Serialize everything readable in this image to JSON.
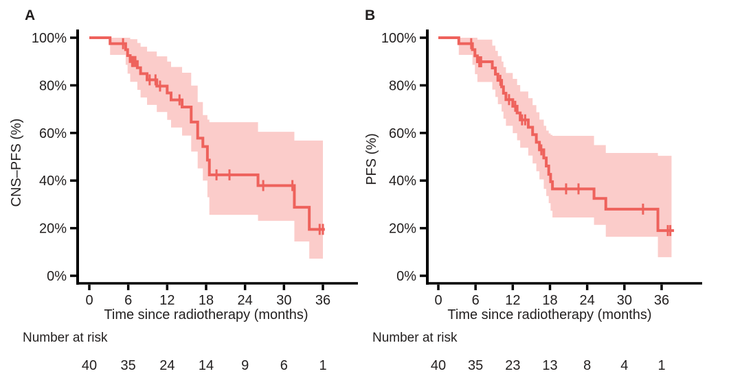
{
  "colors": {
    "curve_line": "#ee625c",
    "confidence_band": "#fbccca",
    "axis": "#000000",
    "text": "#221f1f",
    "background": "#ffffff"
  },
  "figure": {
    "panels": [
      {
        "label": "A",
        "ylabel": "CNS–PFS (%)",
        "xlabel": "Time since radiotherapy (months)",
        "risk_label": "Number at risk"
      },
      {
        "label": "B",
        "ylabel": "PFS (%)",
        "xlabel": "Time since radiotherapy (months)",
        "risk_label": "Number at risk"
      }
    ]
  },
  "chart_data": [
    {
      "type": "line",
      "variant": "kaplan-meier-step",
      "panel": "A",
      "ylabel": "CNS–PFS (%)",
      "xlabel": "Time since radiotherapy (months)",
      "xlim": [
        0,
        41
      ],
      "ylim": [
        0,
        100
      ],
      "x_ticks": [
        0,
        6,
        12,
        18,
        24,
        30,
        36
      ],
      "y_ticks": [
        0,
        20,
        40,
        60,
        80,
        100
      ],
      "y_tick_labels": [
        "0%",
        "20%",
        "40%",
        "60%",
        "80%",
        "100%"
      ],
      "legend": "none",
      "grid": false,
      "steps_format": [
        "time_months",
        "survival_pct",
        "ci_lower_pct",
        "ci_upper_pct"
      ],
      "steps": [
        [
          0,
          100,
          100,
          100
        ],
        [
          3.2,
          97.5,
          92.8,
          100
        ],
        [
          5.6,
          95.0,
          88.6,
          100
        ],
        [
          5.9,
          92.5,
          84.9,
          100
        ],
        [
          6.3,
          90.0,
          81.5,
          99.4
        ],
        [
          7.4,
          87.4,
          78.1,
          97.8
        ],
        [
          7.9,
          84.9,
          74.9,
          96.2
        ],
        [
          8.9,
          82.3,
          71.8,
          94.2
        ],
        [
          10.4,
          79.7,
          68.8,
          92.2
        ],
        [
          12.0,
          76.8,
          65.5,
          90.0
        ],
        [
          12.6,
          73.9,
          62.3,
          87.7
        ],
        [
          14.3,
          70.9,
          58.9,
          85.3
        ],
        [
          15.7,
          64.6,
          52.2,
          79.9
        ],
        [
          16.7,
          57.8,
          45.1,
          73.0
        ],
        [
          17.5,
          54.3,
          40.0,
          67.5
        ],
        [
          18.2,
          48.6,
          33.0,
          65.6
        ],
        [
          18.5,
          42.4,
          25.6,
          64.5
        ],
        [
          26.0,
          37.9,
          23.1,
          60.5
        ],
        [
          31.6,
          28.8,
          14.4,
          56.8
        ],
        [
          33.9,
          19.5,
          7.2,
          56.8
        ]
      ],
      "end_time": 36.3,
      "band_end_time": 36.0,
      "censor_marks": [
        [
          5.2,
          97.5
        ],
        [
          6.6,
          90.0
        ],
        [
          6.8,
          90.0
        ],
        [
          7.1,
          90.0
        ],
        [
          9.3,
          82.3
        ],
        [
          10.2,
          82.3
        ],
        [
          10.9,
          79.7
        ],
        [
          13.9,
          73.9
        ],
        [
          19.6,
          42.4
        ],
        [
          21.6,
          42.4
        ],
        [
          26.8,
          37.9
        ],
        [
          31.3,
          37.9
        ],
        [
          35.5,
          19.5
        ],
        [
          36.0,
          19.5
        ]
      ],
      "number_at_risk": {
        "times": [
          0,
          6,
          12,
          18,
          24,
          30,
          36
        ],
        "counts": [
          40,
          35,
          24,
          14,
          9,
          6,
          1
        ]
      }
    },
    {
      "type": "line",
      "variant": "kaplan-meier-step",
      "panel": "B",
      "ylabel": "PFS (%)",
      "xlabel": "Time since radiotherapy (months)",
      "xlim": [
        0,
        41
      ],
      "ylim": [
        0,
        100
      ],
      "x_ticks": [
        0,
        6,
        12,
        18,
        24,
        30,
        36
      ],
      "y_ticks": [
        0,
        20,
        40,
        60,
        80,
        100
      ],
      "y_tick_labels": [
        "0%",
        "20%",
        "40%",
        "60%",
        "80%",
        "100%"
      ],
      "legend": "none",
      "grid": false,
      "steps_format": [
        "time_months",
        "survival_pct",
        "ci_lower_pct",
        "ci_upper_pct"
      ],
      "steps": [
        [
          0,
          100,
          100,
          100
        ],
        [
          3.3,
          97.5,
          92.8,
          100
        ],
        [
          5.5,
          95.0,
          88.6,
          100
        ],
        [
          5.9,
          92.4,
          84.7,
          100
        ],
        [
          6.3,
          89.9,
          81.4,
          99.2
        ],
        [
          8.7,
          87.3,
          78.2,
          96.7
        ],
        [
          9.2,
          84.7,
          75.1,
          94.5
        ],
        [
          9.6,
          82.1,
          72.1,
          92.3
        ],
        [
          10.2,
          79.4,
          69.0,
          90.0
        ],
        [
          10.5,
          76.7,
          66.0,
          87.6
        ],
        [
          10.9,
          74.0,
          63.0,
          85.2
        ],
        [
          12.0,
          71.2,
          59.9,
          82.7
        ],
        [
          12.7,
          68.4,
          56.9,
          80.1
        ],
        [
          13.2,
          65.5,
          53.8,
          77.4
        ],
        [
          14.5,
          62.4,
          50.5,
          74.6
        ],
        [
          15.2,
          59.3,
          47.2,
          71.7
        ],
        [
          15.8,
          56.1,
          43.9,
          68.7
        ],
        [
          16.3,
          52.9,
          40.5,
          65.6
        ],
        [
          17.0,
          49.5,
          36.5,
          63.0
        ],
        [
          17.4,
          46.1,
          33.5,
          61.0
        ],
        [
          17.8,
          42.6,
          30.5,
          59.8
        ],
        [
          18.1,
          39.5,
          27.3,
          59.2
        ],
        [
          18.4,
          36.5,
          24.5,
          58.8
        ],
        [
          25.1,
          32.5,
          21.4,
          54.9
        ],
        [
          27.0,
          28.0,
          16.4,
          51.6
        ],
        [
          35.4,
          19.0,
          7.8,
          50.4
        ]
      ],
      "end_time": 38.0,
      "band_end_time": 37.6,
      "censor_marks": [
        [
          5.3,
          97.5
        ],
        [
          6.6,
          89.9
        ],
        [
          6.9,
          89.9
        ],
        [
          10.0,
          82.1
        ],
        [
          11.4,
          74.0
        ],
        [
          12.4,
          71.2
        ],
        [
          13.5,
          65.5
        ],
        [
          14.0,
          65.5
        ],
        [
          16.6,
          52.9
        ],
        [
          20.6,
          36.5
        ],
        [
          22.6,
          36.5
        ],
        [
          33.0,
          28.0
        ],
        [
          37.0,
          19.0
        ],
        [
          37.4,
          19.0
        ]
      ],
      "number_at_risk": {
        "times": [
          0,
          6,
          12,
          18,
          24,
          30,
          36
        ],
        "counts": [
          40,
          35,
          23,
          13,
          8,
          4,
          1
        ]
      }
    }
  ]
}
